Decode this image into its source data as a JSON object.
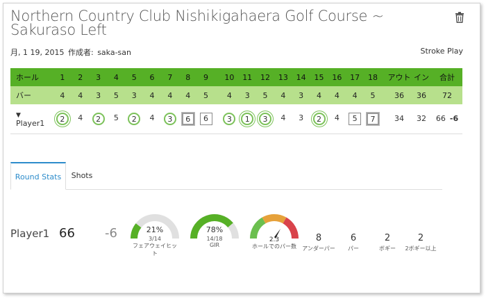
{
  "header": {
    "title": "Northern Country Club Nishikigahaera Golf Course ~ Sakuraso Left",
    "date": "月, 1 19, 2015",
    "author_label": "作成者:",
    "author": "saka-san",
    "mode": "Stroke Play",
    "delete_icon": "trash-icon"
  },
  "scorecard": {
    "hole_label": "ホール",
    "par_label": "バー",
    "holes_out": [
      "1",
      "2",
      "3",
      "4",
      "5",
      "6",
      "7",
      "8",
      "9"
    ],
    "holes_in": [
      "10",
      "11",
      "12",
      "13",
      "14",
      "15",
      "16",
      "17",
      "18"
    ],
    "out_label": "アウト",
    "in_label": "イン",
    "total_label": "合計",
    "par_out": [
      "4",
      "4",
      "3",
      "5",
      "3",
      "4",
      "4",
      "4",
      "5"
    ],
    "par_in": [
      "4",
      "3",
      "5",
      "4",
      "3",
      "4",
      "4",
      "4",
      "5"
    ],
    "par_out_total": "36",
    "par_in_total": "36",
    "par_total": "72",
    "player": {
      "name": "Player1",
      "expand_icon": "chevron-down-icon",
      "scores_out": [
        {
          "v": "2",
          "mark": "dcircle"
        },
        {
          "v": "4",
          "mark": "none"
        },
        {
          "v": "2",
          "mark": "circle"
        },
        {
          "v": "5",
          "mark": "none"
        },
        {
          "v": "2",
          "mark": "circle"
        },
        {
          "v": "4",
          "mark": "none"
        },
        {
          "v": "3",
          "mark": "circle"
        },
        {
          "v": "6",
          "mark": "dsquare"
        },
        {
          "v": "6",
          "mark": "square"
        }
      ],
      "scores_in": [
        {
          "v": "3",
          "mark": "circle"
        },
        {
          "v": "1",
          "mark": "dcircle"
        },
        {
          "v": "3",
          "mark": "dcircle"
        },
        {
          "v": "4",
          "mark": "none"
        },
        {
          "v": "3",
          "mark": "none"
        },
        {
          "v": "2",
          "mark": "dcircle"
        },
        {
          "v": "4",
          "mark": "none"
        },
        {
          "v": "5",
          "mark": "square"
        },
        {
          "v": "7",
          "mark": "dsquare"
        }
      ],
      "out": "34",
      "in": "32",
      "total": "66",
      "diff": "-6"
    }
  },
  "tabs": {
    "round_stats": "Round Stats",
    "shots": "Shots"
  },
  "stats": {
    "player": "Player1",
    "total": "66",
    "diff": "-6",
    "fairway": {
      "pct": "21%",
      "detail": "3/14",
      "label": "フェアウェイヒット",
      "fraction": 0.214,
      "color": "#56b026"
    },
    "gir": {
      "pct": "78%",
      "detail": "14/18",
      "label": "GIR",
      "fraction": 0.778,
      "color": "#56b026"
    },
    "putts": {
      "value": "2.3",
      "label": "ホールでのパー数"
    },
    "counts": [
      {
        "value": "8",
        "label": "アンダーパー"
      },
      {
        "value": "6",
        "label": "パー"
      },
      {
        "value": "2",
        "label": "ボギー"
      },
      {
        "value": "2",
        "label": "2ボギー以上"
      }
    ]
  }
}
